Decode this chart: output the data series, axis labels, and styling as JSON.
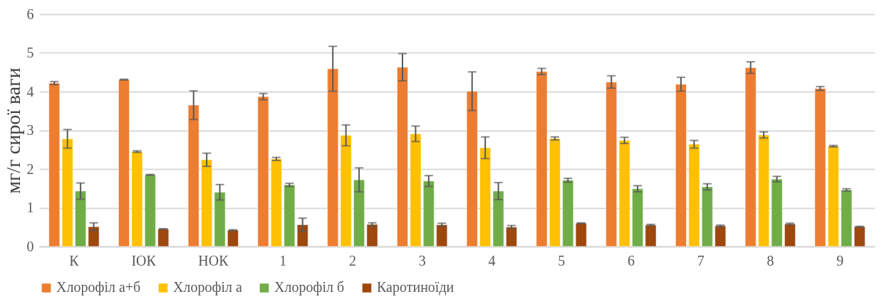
{
  "chart_data": {
    "type": "bar",
    "ylabel": "мг/г сирої ваги",
    "categories": [
      "К",
      "ІОК",
      "НОК",
      "1",
      "2",
      "3",
      "4",
      "5",
      "6",
      "7",
      "8",
      "9"
    ],
    "series": [
      {
        "name": "Хлорофіл а+б",
        "color": "#ed7d31",
        "values": [
          4.22,
          4.31,
          3.65,
          3.87,
          4.59,
          4.63,
          4.01,
          4.52,
          4.25,
          4.19,
          4.62,
          4.08
        ],
        "errors": [
          0.04,
          0.01,
          0.37,
          0.08,
          0.58,
          0.35,
          0.5,
          0.08,
          0.16,
          0.18,
          0.15,
          0.05
        ]
      },
      {
        "name": "Хлорофіл а",
        "color": "#ffc000",
        "values": [
          2.78,
          2.45,
          2.24,
          2.26,
          2.87,
          2.91,
          2.55,
          2.79,
          2.74,
          2.64,
          2.88,
          2.59
        ],
        "errors": [
          0.24,
          0.02,
          0.17,
          0.04,
          0.27,
          0.2,
          0.28,
          0.04,
          0.08,
          0.1,
          0.08,
          0.02
        ]
      },
      {
        "name": "Хлорофіл б",
        "color": "#70ad47",
        "values": [
          1.43,
          1.85,
          1.4,
          1.59,
          1.72,
          1.69,
          1.43,
          1.71,
          1.49,
          1.54,
          1.74,
          1.46
        ],
        "errors": [
          0.21,
          0.01,
          0.2,
          0.04,
          0.31,
          0.14,
          0.22,
          0.05,
          0.08,
          0.08,
          0.07,
          0.03
        ]
      },
      {
        "name": "Каротиноїди",
        "color": "#9e480e",
        "values": [
          0.51,
          0.45,
          0.42,
          0.56,
          0.57,
          0.56,
          0.5,
          0.6,
          0.55,
          0.53,
          0.58,
          0.51
        ],
        "errors": [
          0.1,
          0.01,
          0.01,
          0.17,
          0.04,
          0.04,
          0.04,
          0.01,
          0.02,
          0.02,
          0.02,
          0.01
        ]
      }
    ],
    "ylim": [
      0,
      6
    ],
    "yticks": [
      0,
      1,
      2,
      3,
      4,
      5,
      6
    ],
    "grid": "y",
    "legend": "bottom"
  }
}
